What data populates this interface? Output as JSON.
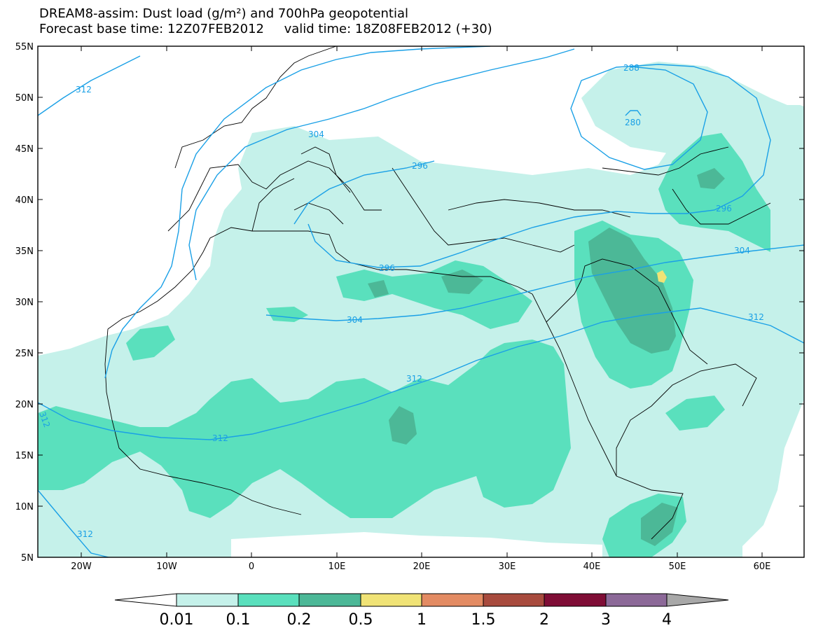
{
  "header": {
    "title_line1": "DREAM8-assim: Dust load (g/m²) and 700hPa geopotential",
    "title_line2": "Forecast base time: 12Z07FEB2012     valid time: 18Z08FEB2012 (+30)"
  },
  "axes": {
    "lat_labels": [
      "55N",
      "50N",
      "45N",
      "40N",
      "35N",
      "30N",
      "25N",
      "20N",
      "15N",
      "10N",
      "5N"
    ],
    "lon_labels": [
      "20W",
      "10W",
      "0",
      "10E",
      "20E",
      "30E",
      "40E",
      "50E",
      "60E"
    ]
  },
  "contour_labels": [
    "312",
    "304",
    "296",
    "288",
    "280",
    "296",
    "304",
    "312",
    "296",
    "304",
    "312",
    "312",
    "312",
    "312"
  ],
  "colorbar": {
    "labels": [
      "0.01",
      "0.1",
      "0.2",
      "0.5",
      "1",
      "1.5",
      "2",
      "3",
      "4"
    ],
    "colors": [
      "#ffffff",
      "#c5f1ea",
      "#5ae0bd",
      "#4cb897",
      "#f0e376",
      "#e38b63",
      "#a84b3e",
      "#7f0d36",
      "#8c6998",
      "#a8a8a8"
    ]
  },
  "colors": {
    "ocean": "#ffffff",
    "contour": "#1aa0e6",
    "coast": "#000000"
  }
}
